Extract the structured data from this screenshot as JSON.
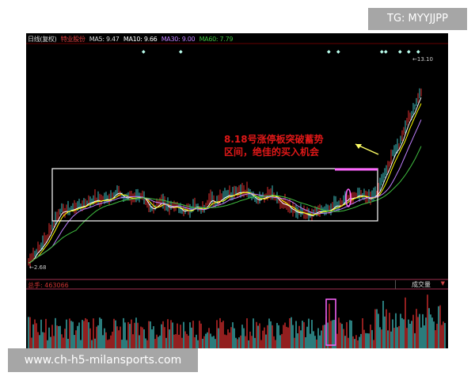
{
  "header": {
    "period": "日线(复权)",
    "stock": "特业股份",
    "ma5": "MA5: 9.47",
    "ma10": "MA10: 9.66",
    "ma30": "MA30: 9.00",
    "ma60": "MA60: 7.79"
  },
  "price_labels": {
    "high": "13.10",
    "low": "2.68"
  },
  "annotation": {
    "line1": "8.18号涨停板突破蓄势",
    "line2": "区间，绝佳的买入机会"
  },
  "volume": {
    "label": "总手: 463066",
    "tab": "成交量",
    "dropdown": "▼"
  },
  "watermarks": {
    "tg": "TG: MYYJJPP",
    "site": "www.ch-h5-milansports.com"
  },
  "colors": {
    "up": "#e03030",
    "down": "#40c0c0",
    "box": "#ffffff",
    "highlight": "#ff66ff",
    "arrow": "#ffff66",
    "ma30": "#c080ff",
    "ma60": "#40c040"
  }
}
